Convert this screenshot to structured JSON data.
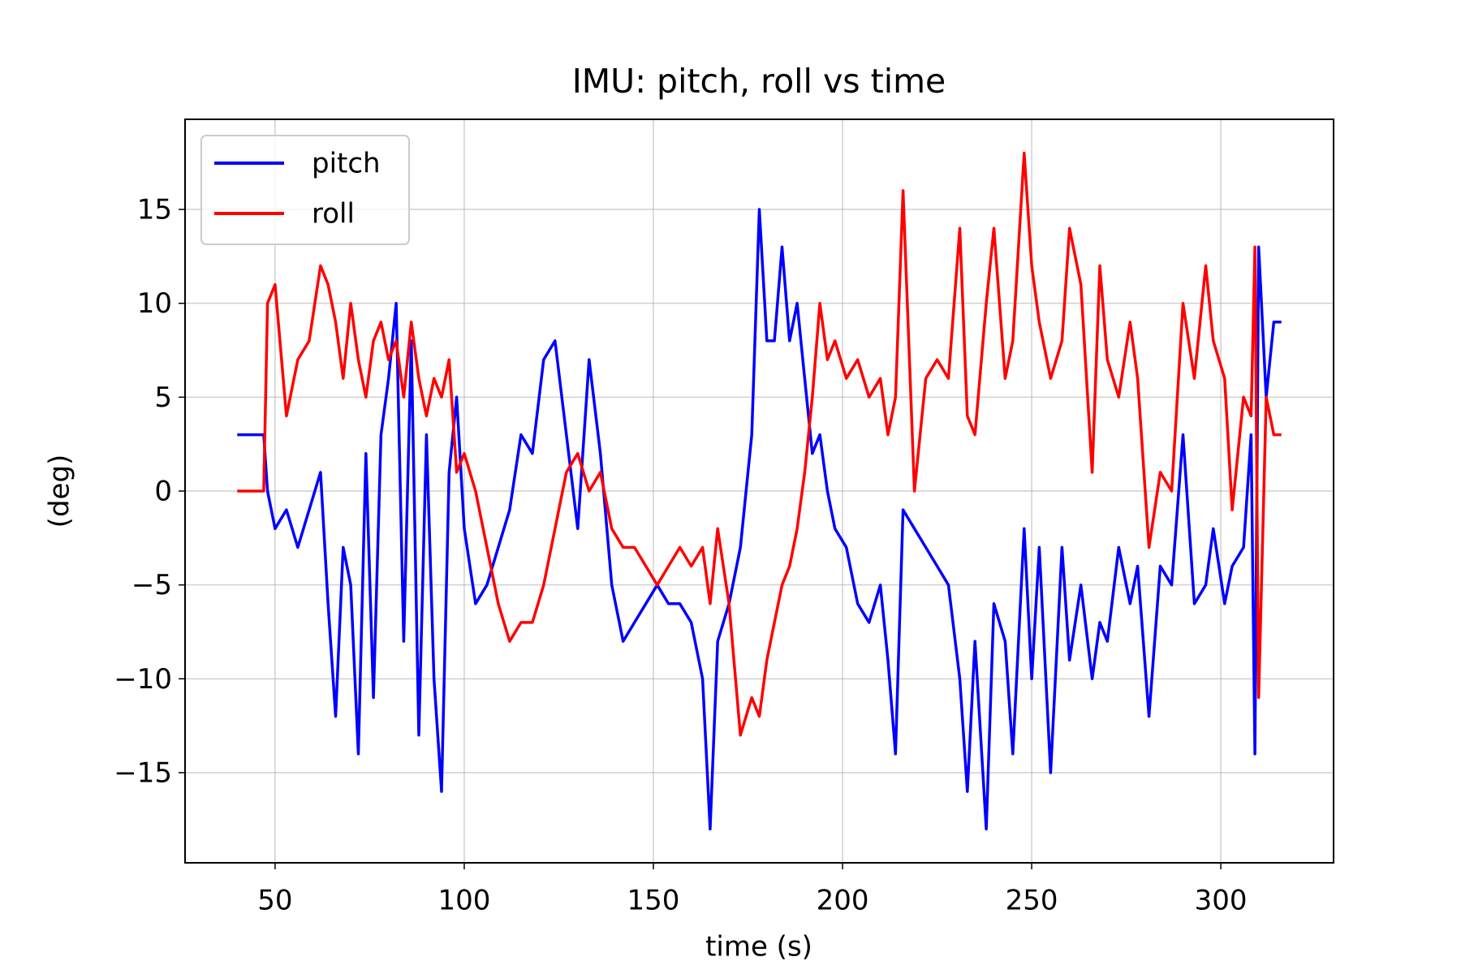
{
  "chart_data": {
    "type": "line",
    "title": "IMU: pitch, roll vs time",
    "xlabel": "time (s)",
    "ylabel": "(deg)",
    "x": [
      40,
      44,
      47,
      48,
      50,
      53,
      56,
      59,
      62,
      64,
      66,
      68,
      70,
      72,
      74,
      76,
      78,
      80,
      82,
      84,
      86,
      88,
      90,
      92,
      94,
      96,
      98,
      100,
      103,
      106,
      109,
      112,
      115,
      118,
      121,
      124,
      127,
      130,
      133,
      136,
      139,
      142,
      145,
      148,
      151,
      154,
      157,
      160,
      163,
      165,
      167,
      170,
      173,
      176,
      178,
      180,
      182,
      184,
      186,
      188,
      190,
      192,
      194,
      196,
      198,
      201,
      204,
      207,
      210,
      212,
      214,
      216,
      219,
      222,
      225,
      228,
      231,
      233,
      235,
      238,
      240,
      243,
      245,
      248,
      250,
      252,
      255,
      258,
      260,
      263,
      266,
      268,
      270,
      273,
      276,
      278,
      281,
      284,
      287,
      290,
      293,
      296,
      298,
      301,
      303,
      306,
      308,
      309,
      310,
      312,
      314,
      316
    ],
    "series": [
      {
        "name": "pitch",
        "color": "#0000ff",
        "values": [
          3,
          3,
          3,
          0,
          -2,
          -1,
          -3,
          -1,
          1,
          -6,
          -12,
          -3,
          -5,
          -14,
          2,
          -11,
          3,
          6,
          10,
          -8,
          8,
          -13,
          3,
          -10,
          -16,
          1,
          5,
          -2,
          -6,
          -5,
          -3,
          -1,
          3,
          2,
          7,
          8,
          3,
          -2,
          7,
          2,
          -5,
          -8,
          -7,
          -6,
          -5,
          -6,
          -6,
          -7,
          -10,
          -18,
          -8,
          -6,
          -3,
          3,
          15,
          8,
          8,
          13,
          8,
          10,
          6,
          2,
          3,
          0,
          -2,
          -3,
          -6,
          -7,
          -5,
          -9,
          -14,
          -1,
          -2,
          -3,
          -4,
          -5,
          -10,
          -16,
          -8,
          -18,
          -6,
          -8,
          -14,
          -2,
          -10,
          -3,
          -15,
          -3,
          -9,
          -5,
          -10,
          -7,
          -8,
          -3,
          -6,
          -4,
          -12,
          -4,
          -5,
          3,
          -6,
          -5,
          -2,
          -6,
          -4,
          -3,
          3,
          -14,
          13,
          5,
          9,
          9
        ]
      },
      {
        "name": "roll",
        "color": "#ff0000",
        "values": [
          0,
          0,
          0,
          10,
          11,
          4,
          7,
          8,
          12,
          11,
          9,
          6,
          10,
          7,
          5,
          8,
          9,
          7,
          8,
          5,
          9,
          6,
          4,
          6,
          5,
          7,
          1,
          2,
          0,
          -3,
          -6,
          -8,
          -7,
          -7,
          -5,
          -2,
          1,
          2,
          0,
          1,
          -2,
          -3,
          -3,
          -4,
          -5,
          -4,
          -3,
          -4,
          -3,
          -6,
          -2,
          -6,
          -13,
          -11,
          -12,
          -9,
          -7,
          -5,
          -4,
          -2,
          1,
          5,
          10,
          7,
          8,
          6,
          7,
          5,
          6,
          3,
          5,
          16,
          0,
          6,
          7,
          6,
          14,
          4,
          3,
          10,
          14,
          6,
          8,
          18,
          12,
          9,
          6,
          8,
          14,
          11,
          1,
          12,
          7,
          5,
          9,
          6,
          -3,
          1,
          0,
          10,
          6,
          12,
          8,
          6,
          -1,
          5,
          4,
          13,
          -11,
          5,
          3,
          3
        ]
      }
    ],
    "xlim": [
      26.2,
      329.8
    ],
    "ylim": [
      -19.8,
      19.8
    ],
    "xticks": [
      50,
      100,
      150,
      200,
      250,
      300
    ],
    "yticks": [
      {
        "value": -15,
        "label": "−15"
      },
      {
        "value": -10,
        "label": "−10"
      },
      {
        "value": -5,
        "label": "−5"
      },
      0,
      5,
      10,
      15
    ],
    "grid": true,
    "legend": "upper left"
  }
}
